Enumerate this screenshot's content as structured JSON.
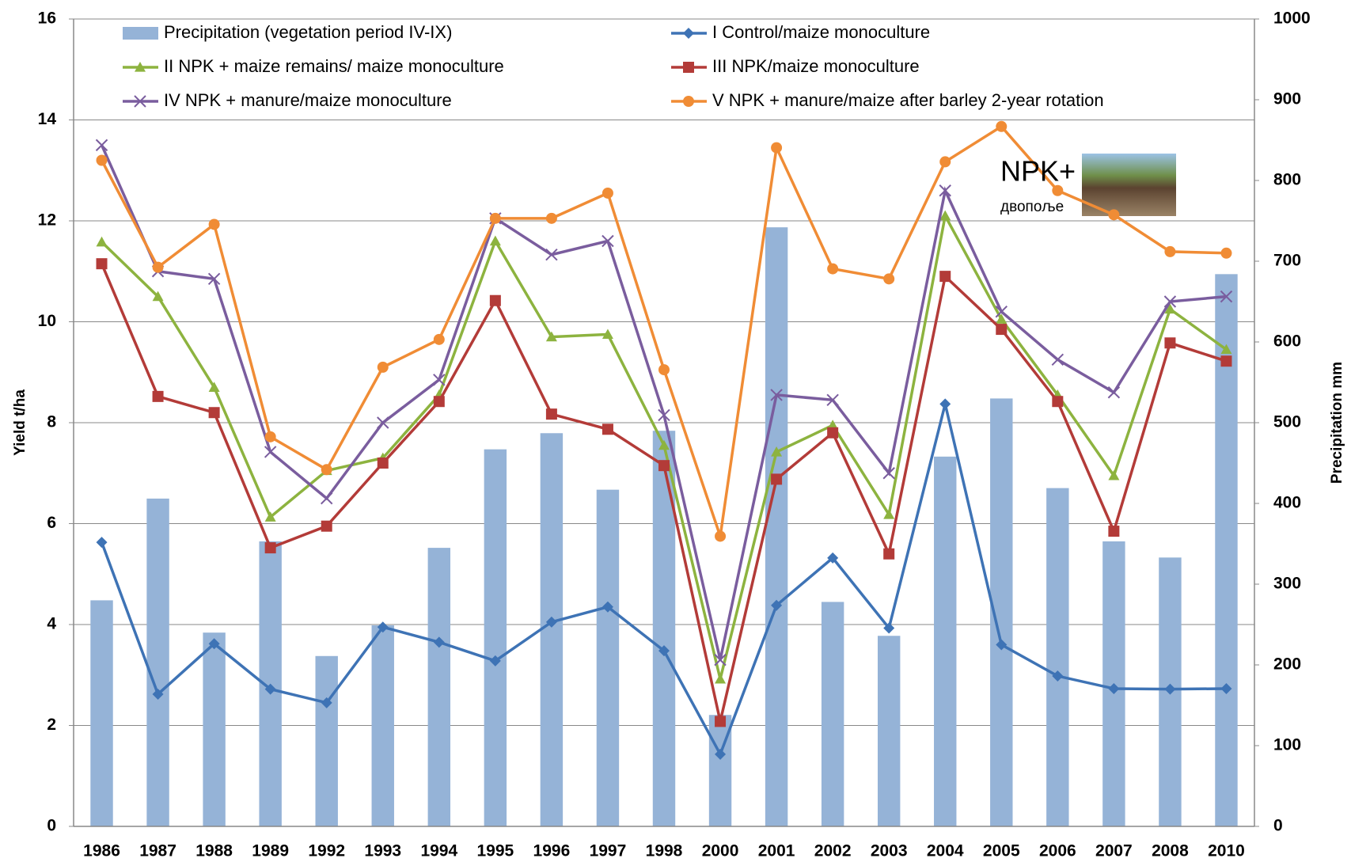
{
  "chart_data": {
    "type": "combo",
    "y_label": "Yield t/ha",
    "y2_label": "Precipitation mm",
    "categories": [
      "1986",
      "1987",
      "1988",
      "1989",
      "1992",
      "1993",
      "1994",
      "1995",
      "1996",
      "1997",
      "1998",
      "2000",
      "2001",
      "2002",
      "2003",
      "2004",
      "2005",
      "2006",
      "2007",
      "2008",
      "2010"
    ],
    "ylim": [
      0,
      16
    ],
    "yticks": [
      0,
      2,
      4,
      6,
      8,
      10,
      12,
      14,
      16
    ],
    "y2lim": [
      0,
      1000
    ],
    "y2ticks": [
      0,
      100,
      200,
      300,
      400,
      500,
      600,
      700,
      800,
      900,
      1000
    ],
    "grid": true,
    "series": [
      {
        "name": "Precipitation (vegetation period IV-IX)",
        "type": "bar",
        "axis": "y2",
        "color": "#95b3d7",
        "values": [
          280,
          406,
          240,
          353,
          211,
          249,
          345,
          467,
          487,
          417,
          490,
          138,
          742,
          278,
          236,
          458,
          530,
          419,
          353,
          333,
          684
        ]
      },
      {
        "name": "I Control/maize monoculture",
        "type": "line",
        "marker": "diamond",
        "color": "#3e73b5",
        "values": [
          5.63,
          2.62,
          3.62,
          2.72,
          2.45,
          3.95,
          3.65,
          3.28,
          4.05,
          4.35,
          3.48,
          1.43,
          4.38,
          5.32,
          3.93,
          8.37,
          3.6,
          2.98,
          2.73,
          2.72,
          2.73
        ]
      },
      {
        "name": "II NPK + maize remains/ maize monoculture",
        "type": "line",
        "marker": "triangle",
        "color": "#8db33f",
        "values": [
          11.58,
          10.5,
          8.7,
          6.13,
          7.05,
          7.3,
          8.55,
          11.6,
          9.7,
          9.75,
          7.55,
          2.92,
          7.42,
          7.95,
          6.18,
          12.1,
          10.05,
          8.55,
          6.95,
          10.25,
          9.45
        ]
      },
      {
        "name": "III NPK/maize monoculture",
        "type": "line",
        "marker": "square",
        "color": "#b33b38",
        "values": [
          11.15,
          8.52,
          8.2,
          5.52,
          5.95,
          7.2,
          8.42,
          10.42,
          8.17,
          7.87,
          7.15,
          2.08,
          6.88,
          7.8,
          5.4,
          10.9,
          9.85,
          8.42,
          5.85,
          9.58,
          9.22
        ]
      },
      {
        "name": "IV NPK + manure/maize monoculture",
        "type": "line",
        "marker": "x",
        "color": "#7a5d9e",
        "values": [
          13.5,
          11.0,
          10.85,
          7.42,
          6.5,
          8.0,
          8.85,
          12.05,
          11.33,
          11.6,
          8.15,
          3.3,
          8.55,
          8.45,
          7.0,
          12.6,
          10.2,
          9.25,
          8.6,
          10.4,
          10.5
        ]
      },
      {
        "name": "V NPK + manure/maize after barley 2-year rotation",
        "type": "line",
        "marker": "circle",
        "color": "#f08c35",
        "values": [
          13.2,
          11.08,
          11.93,
          7.72,
          7.07,
          9.1,
          9.65,
          12.05,
          12.05,
          12.55,
          9.05,
          5.75,
          13.45,
          11.05,
          10.85,
          13.17,
          13.87,
          12.6,
          12.12,
          11.39,
          11.36
        ]
      }
    ],
    "inset": {
      "letters": [
        {
          "text": "N",
          "color": "#000000"
        },
        {
          "text": "P",
          "color": "#2f6fd0"
        },
        {
          "text": "K",
          "color": "#e02020"
        },
        {
          "text": "+",
          "color": "#20a050"
        }
      ],
      "caption": "двопоље"
    }
  }
}
